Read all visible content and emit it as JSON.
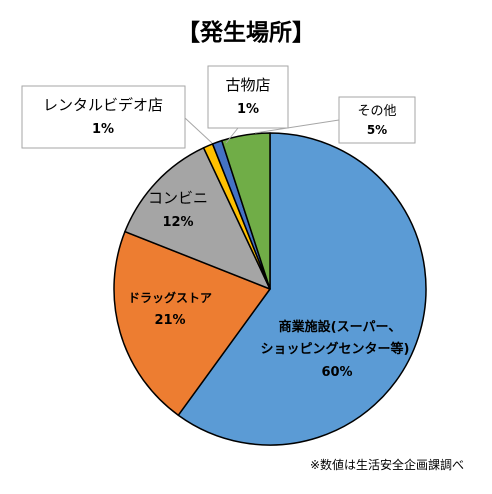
{
  "chart_data": {
    "type": "pie",
    "title": "【発生場所】",
    "note": "※数値は生活安全企画課調べ",
    "slices": [
      {
        "name": "商業施設(スーパー、",
        "name2": "ショッピングセンター等)",
        "pct_label": "60%",
        "value": 60,
        "color": "#5B9BD5"
      },
      {
        "name": "ドラッグストア",
        "pct_label": "21%",
        "value": 21,
        "color": "#ED7D31"
      },
      {
        "name": "コンビニ",
        "pct_label": "12%",
        "value": 12,
        "color": "#A5A5A5"
      },
      {
        "name": "レンタルビデオ店",
        "pct_label": "1%",
        "value": 1,
        "color": "#FFC000"
      },
      {
        "name": "古物店",
        "pct_label": "1%",
        "value": 1,
        "color": "#4472C4"
      },
      {
        "name": "その他",
        "pct_label": "5%",
        "value": 5,
        "color": "#70AD47"
      }
    ]
  }
}
